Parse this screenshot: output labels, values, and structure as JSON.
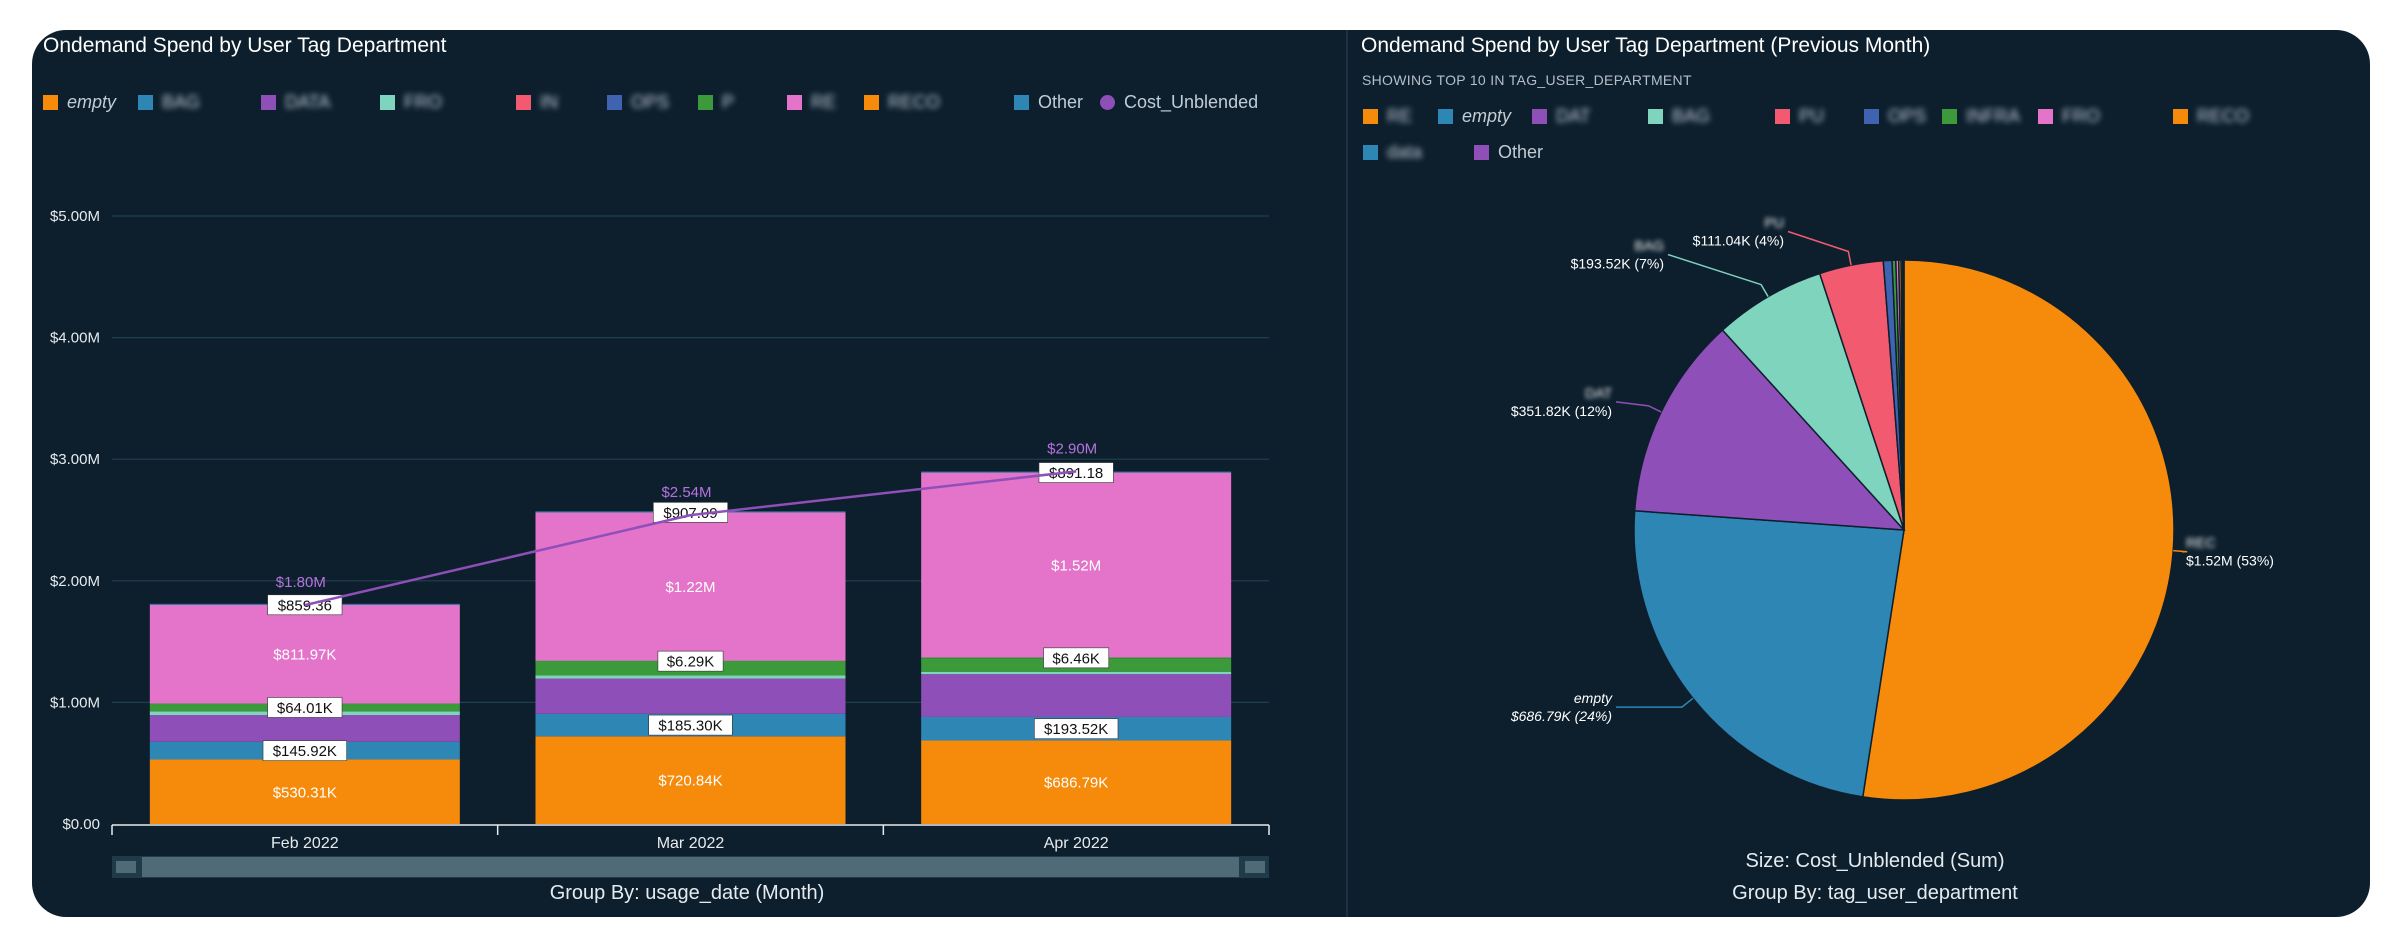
{
  "left_panel": {
    "title": "Ondemand Spend by User Tag Department",
    "legend": [
      {
        "label": "empty",
        "color": "#f58a0b",
        "italic": true,
        "blurred": false
      },
      {
        "label": "BAG",
        "color": "#2e86b5",
        "italic": false,
        "blurred": true
      },
      {
        "label": "DATA",
        "color": "#8f4fb8",
        "italic": false,
        "blurred": true
      },
      {
        "label": "FRO",
        "color": "#7ed4bc",
        "italic": false,
        "blurred": true
      },
      {
        "label": "IN",
        "color": "#f25a6f",
        "italic": false,
        "blurred": true
      },
      {
        "label": "OPS",
        "color": "#3f63b0",
        "italic": false,
        "blurred": true
      },
      {
        "label": "P",
        "color": "#3d9a3b",
        "italic": false,
        "blurred": true
      },
      {
        "label": "RE",
        "color": "#e474c9",
        "italic": false,
        "blurred": true
      },
      {
        "label": "RECO",
        "color": "#f58a0b",
        "italic": false,
        "blurred": true
      },
      {
        "label": "Other",
        "color": "#2e86b5",
        "italic": false,
        "blurred": false
      },
      {
        "label": "Cost_Unblended",
        "color": "#8f4fb8",
        "italic": false,
        "blurred": false,
        "round": true
      }
    ],
    "group_by": "Group By: usage_date (Month)"
  },
  "right_panel": {
    "title": "Ondemand Spend by User Tag Department (Previous Month)",
    "subtitle": "SHOWING TOP 10 IN TAG_USER_DEPARTMENT",
    "legend": [
      {
        "label": "RE",
        "color": "#f58a0b",
        "italic": false,
        "blurred": true
      },
      {
        "label": "empty",
        "color": "#2e86b5",
        "italic": true,
        "blurred": false
      },
      {
        "label": "DAT",
        "color": "#8f4fb8",
        "italic": false,
        "blurred": true
      },
      {
        "label": "BAG",
        "color": "#7ed4bc",
        "italic": false,
        "blurred": true
      },
      {
        "label": "PU",
        "color": "#f25a6f",
        "italic": false,
        "blurred": true
      },
      {
        "label": "OPS",
        "color": "#3f63b0",
        "italic": false,
        "blurred": true
      },
      {
        "label": "INFRA",
        "color": "#3d9a3b",
        "italic": false,
        "blurred": true
      },
      {
        "label": "FRO",
        "color": "#e474c9",
        "italic": false,
        "blurred": true
      },
      {
        "label": "RECO",
        "color": "#f58a0b",
        "italic": false,
        "blurred": true
      },
      {
        "label": "data",
        "color": "#2e86b5",
        "italic": false,
        "blurred": true
      },
      {
        "label": "Other",
        "color": "#8f4fb8",
        "italic": false,
        "blurred": false
      }
    ],
    "size_label": "Size: Cost_Unblended (Sum)",
    "group_by": "Group By: tag_user_department"
  },
  "chart_data": [
    {
      "type": "bar",
      "stacked": true,
      "title": "Ondemand Spend by User Tag Department",
      "categories": [
        "Feb 2022",
        "Mar 2022",
        "Apr 2022"
      ],
      "ylim": [
        0,
        5000000
      ],
      "yticks": [
        0,
        1000000,
        2000000,
        3000000,
        4000000,
        5000000
      ],
      "ytick_labels": [
        "$0.00",
        "$1.00M",
        "$2.00M",
        "$3.00M",
        "$4.00M",
        "$5.00M"
      ],
      "grid": true,
      "series": [
        {
          "color": "#f58a0b",
          "values": [
            530310,
            720840,
            686790
          ],
          "labels": [
            "$530.31K",
            "$720.84K",
            "$686.79K"
          ],
          "label_style": "plain"
        },
        {
          "color": "#2e86b5",
          "values": [
            145920,
            185300,
            193520
          ],
          "labels": [
            "$145.92K",
            "$185.30K",
            "$193.52K"
          ],
          "label_style": "boxed"
        },
        {
          "color": "#8f4fb8",
          "values": [
            220000,
            290000,
            351820
          ],
          "labels": [
            "",
            "",
            ""
          ],
          "label_style": "plain"
        },
        {
          "color": "#7ed4bc",
          "values": [
            30000,
            25000,
            20000
          ],
          "labels": [
            "",
            "",
            ""
          ],
          "label_style": "plain"
        },
        {
          "color": "#3d9a3b",
          "values": [
            64010,
            115000,
            111040
          ],
          "labels": [
            "$64.01K",
            "",
            ""
          ],
          "label_style": "boxed"
        },
        {
          "color": "#3d9a3b",
          "values": [
            0,
            6290,
            6460
          ],
          "labels": [
            "",
            "$6.29K",
            "$6.46K"
          ],
          "label_style": "boxed"
        },
        {
          "color": "#e474c9",
          "values": [
            811970,
            1220000,
            1520000
          ],
          "labels": [
            "$811.97K",
            "$1.22M",
            "$1.52M"
          ],
          "label_style": "plain"
        },
        {
          "color": "#2e86b5",
          "values": [
            859.36,
            907.09,
            891.18
          ],
          "labels": [
            "$859.36",
            "$907.09",
            "$891.18"
          ],
          "label_style": "boxed"
        }
      ],
      "line": {
        "name": "Cost_Unblended",
        "color": "#8f4fb8",
        "values": [
          1800000,
          2540000,
          2900000
        ],
        "labels": [
          "$1.80M",
          "$2.54M",
          "$2.90M"
        ]
      }
    },
    {
      "type": "pie",
      "title": "Ondemand Spend by User Tag Department (Previous Month)",
      "slices": [
        {
          "label": "REC",
          "value": 1520000,
          "percent": 53,
          "color": "#f58a0b",
          "label_text": "$1.52M (53%)",
          "blurred": true
        },
        {
          "label": "empty",
          "value": 686790,
          "percent": 24,
          "color": "#2e86b5",
          "label_text": "$686.79K (24%)",
          "italic": true
        },
        {
          "label": "DAT",
          "value": 351820,
          "percent": 12,
          "color": "#8f4fb8",
          "label_text": "$351.82K (12%)",
          "blurred": true
        },
        {
          "label": "BAG",
          "value": 193520,
          "percent": 7,
          "color": "#7ed4bc",
          "label_text": "$193.52K (7%)",
          "blurred": true
        },
        {
          "label": "PU",
          "value": 111040,
          "percent": 4,
          "color": "#f25a6f",
          "label_text": "$111.04K (4%)",
          "blurred": true
        },
        {
          "label": "OPS",
          "value": 15000,
          "color": "#3f63b0",
          "label_text": ""
        },
        {
          "label": "INFRA",
          "value": 6460,
          "color": "#3d9a3b",
          "label_text": ""
        },
        {
          "label": "FRO",
          "value": 5000,
          "color": "#e474c9",
          "label_text": ""
        },
        {
          "label": "RECO",
          "value": 4000,
          "color": "#f58a0b",
          "label_text": ""
        },
        {
          "label": "data",
          "value": 3000,
          "color": "#2e86b5",
          "label_text": ""
        },
        {
          "label": "Other",
          "value": 2000,
          "color": "#8f4fb8",
          "label_text": ""
        }
      ]
    }
  ]
}
